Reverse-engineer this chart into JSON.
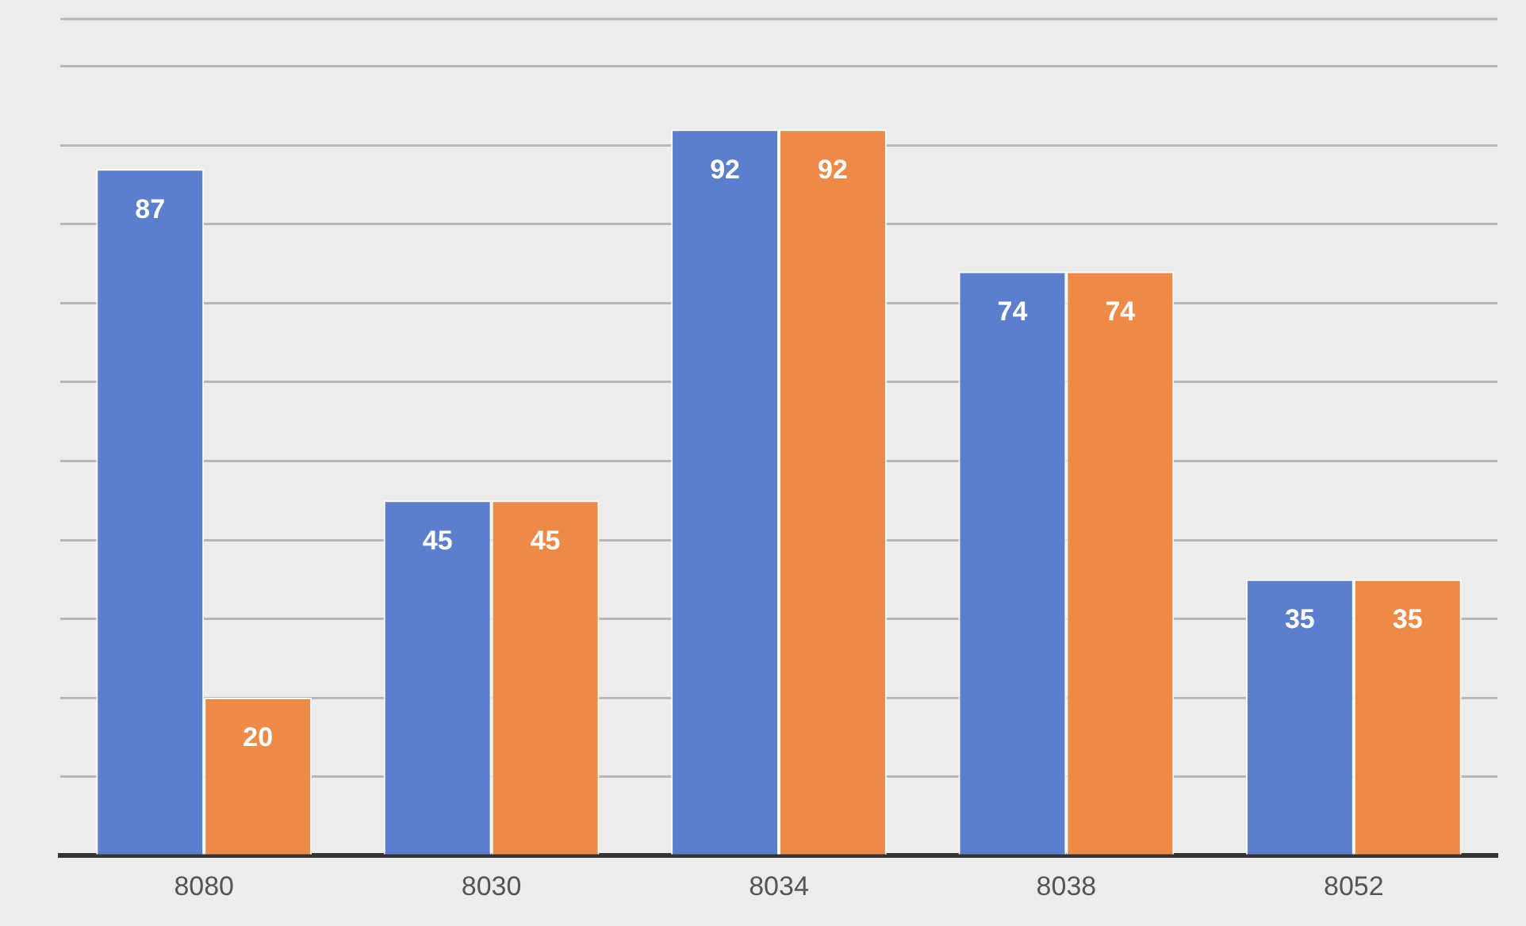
{
  "chart_data": {
    "type": "bar",
    "categories": [
      "8080",
      "8030",
      "8034",
      "8038",
      "8052"
    ],
    "series": [
      {
        "color": "#5b7fcc",
        "values": [
          87,
          45,
          92,
          74,
          35
        ]
      },
      {
        "color": "#ed8a48",
        "values": [
          20,
          45,
          92,
          74,
          35
        ]
      }
    ],
    "ylim": [
      0,
      106
    ],
    "yticks": [
      {
        "value": 0,
        "label": null
      },
      {
        "value": 10,
        "label": null
      },
      {
        "value": 20,
        "label": null
      },
      {
        "value": 30,
        "label": null
      },
      {
        "value": 40,
        "label": null
      },
      {
        "value": 50,
        "label": null
      },
      {
        "value": 60,
        "label": null
      },
      {
        "value": 70,
        "label": null
      },
      {
        "value": 80,
        "label": null
      },
      {
        "value": 90,
        "label": null
      },
      {
        "value": 100,
        "label": null
      }
    ],
    "tick_labels": "x",
    "grid": "y",
    "legend": false,
    "data_labels": true
  }
}
